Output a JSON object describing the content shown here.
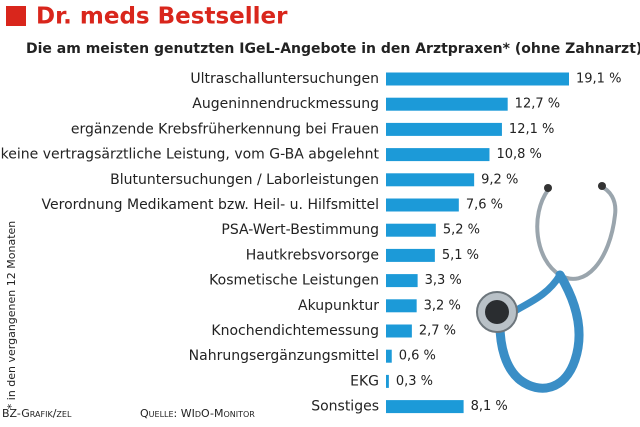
{
  "chart_data": {
    "type": "bar",
    "orientation": "horizontal",
    "title": "Dr. meds Bestseller",
    "subtitle": "Die am meisten genutzten IGeL-Angebote in den Arztpraxen* (ohne Zahnarzt)",
    "footnote": "* in den vergangenen 12 Monaten",
    "credit": "BZ-Grafik/zel",
    "source": "Quelle: WIdO-Monitor",
    "color": "#1c9ad8",
    "categories": [
      "Ultraschalluntersuchungen",
      "Augeninnendruckmessung",
      "ergänzende Krebsfrüherkennung bei Frauen",
      "keine vertragsärztliche Leistung, vom G-BA abgelehnt",
      "Blutuntersuchungen / Laborleistungen",
      "Verordnung Medikament bzw. Heil- u. Hilfsmittel",
      "PSA-Wert-Bestimmung",
      "Hautkrebsvorsorge",
      "Kosmetische Leistungen",
      "Akupunktur",
      "Knochendichtemessung",
      "Nahrungsergänzungsmittel",
      "EKG",
      "Sonstiges"
    ],
    "values": [
      19.1,
      12.7,
      12.1,
      10.8,
      9.2,
      7.6,
      5.2,
      5.1,
      3.3,
      3.2,
      2.7,
      0.6,
      0.3,
      8.1
    ],
    "value_labels": [
      "19,1 %",
      "12,7 %",
      "12,1 %",
      "10,8 %",
      "9,2 %",
      "7,6 %",
      "5,2 %",
      "5,1 %",
      "3,3 %",
      "3,2 %",
      "2,7 %",
      "0,6 %",
      "0,3 %",
      "8,1 %"
    ]
  }
}
